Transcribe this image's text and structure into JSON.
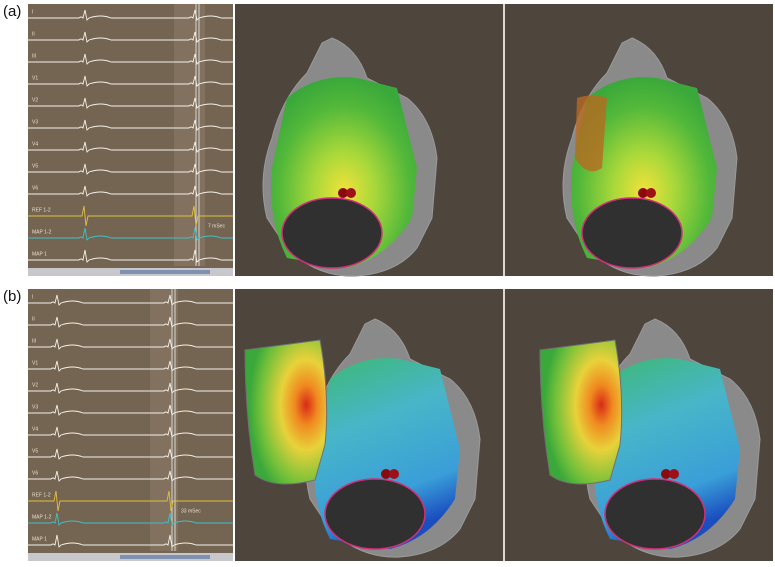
{
  "panels": [
    {
      "label": "(a)",
      "leads": [
        "I",
        "II",
        "III",
        "V1",
        "V2",
        "V3",
        "V4",
        "V5",
        "V6",
        "REF 1-2",
        "MAP 1-2",
        "MAP 1"
      ],
      "annotation": "7 mSec"
    },
    {
      "label": "(b)",
      "leads": [
        "I",
        "II",
        "III",
        "V1",
        "V2",
        "V3",
        "V4",
        "V5",
        "V6",
        "REF 1-2",
        "MAP 1-2",
        "MAP 1"
      ],
      "annotation": "33 mSec"
    }
  ]
}
